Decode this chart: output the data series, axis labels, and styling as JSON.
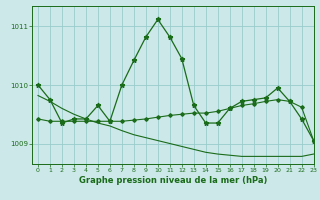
{
  "title": "Graphe pression niveau de la mer (hPa)",
  "background_color": "#cce8e8",
  "grid_color": "#99cccc",
  "line_color": "#1a6b1a",
  "marker_color": "#1a6b1a",
  "xlim": [
    -0.5,
    23
  ],
  "ylim": [
    1008.65,
    1011.35
  ],
  "yticks": [
    1009,
    1010,
    1011
  ],
  "xticks": [
    0,
    1,
    2,
    3,
    4,
    5,
    6,
    7,
    8,
    9,
    10,
    11,
    12,
    13,
    14,
    15,
    16,
    17,
    18,
    19,
    20,
    21,
    22,
    23
  ],
  "series1_x": [
    0,
    1,
    2,
    3,
    4,
    5,
    6,
    7,
    8,
    9,
    10,
    11,
    12,
    13,
    14,
    15,
    16,
    17,
    18,
    19,
    20,
    21,
    22,
    23
  ],
  "series1_y": [
    1010.0,
    1009.75,
    1009.35,
    1009.42,
    1009.42,
    1009.65,
    1009.38,
    1010.0,
    1010.42,
    1010.82,
    1011.12,
    1010.82,
    1010.45,
    1009.65,
    1009.35,
    1009.35,
    1009.6,
    1009.72,
    1009.75,
    1009.78,
    1009.95,
    1009.72,
    1009.42,
    1009.05
  ],
  "series2_x": [
    0,
    1,
    2,
    3,
    4,
    5,
    6,
    7,
    8,
    9,
    10,
    11,
    12,
    13,
    14,
    15,
    16,
    17,
    18,
    19,
    20,
    21,
    22,
    23
  ],
  "series2_y": [
    1009.42,
    1009.38,
    1009.38,
    1009.38,
    1009.38,
    1009.38,
    1009.38,
    1009.38,
    1009.4,
    1009.42,
    1009.45,
    1009.48,
    1009.5,
    1009.52,
    1009.52,
    1009.55,
    1009.6,
    1009.65,
    1009.68,
    1009.72,
    1009.75,
    1009.72,
    1009.62,
    1009.05
  ],
  "series3_x": [
    0,
    1,
    2,
    3,
    4,
    5,
    6,
    7,
    8,
    9,
    10,
    11,
    12,
    13,
    14,
    15,
    16,
    17,
    18,
    19,
    20,
    21,
    22,
    23
  ],
  "series3_y": [
    1009.82,
    1009.72,
    1009.6,
    1009.5,
    1009.42,
    1009.35,
    1009.3,
    1009.22,
    1009.15,
    1009.1,
    1009.05,
    1009.0,
    1008.95,
    1008.9,
    1008.85,
    1008.82,
    1008.8,
    1008.78,
    1008.78,
    1008.78,
    1008.78,
    1008.78,
    1008.78,
    1008.82
  ]
}
